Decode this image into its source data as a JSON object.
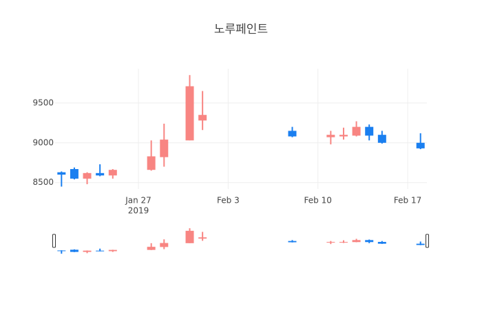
{
  "chart_data": {
    "type": "candlestick",
    "title": "노루페인트",
    "x": [
      "2019-01-21",
      "2019-01-22",
      "2019-01-23",
      "2019-01-24",
      "2019-01-25",
      "2019-01-28",
      "2019-01-29",
      "2019-01-31",
      "2019-02-01",
      "2019-02-08",
      "2019-02-11",
      "2019-02-12",
      "2019-02-13",
      "2019-02-14",
      "2019-02-15",
      "2019-02-18"
    ],
    "open": [
      8630,
      8670,
      8550,
      8620,
      8590,
      8660,
      8820,
      9030,
      9280,
      9150,
      9070,
      9080,
      9090,
      9200,
      9100,
      9000
    ],
    "high": [
      8640,
      8690,
      8630,
      8730,
      8670,
      9030,
      9240,
      9850,
      9650,
      9200,
      9150,
      9190,
      9270,
      9230,
      9150,
      9120
    ],
    "low": [
      8450,
      8540,
      8480,
      8580,
      8550,
      8650,
      8700,
      9030,
      9160,
      9070,
      8980,
      9040,
      9080,
      9030,
      8990,
      8920
    ],
    "close": [
      8600,
      8550,
      8620,
      8590,
      8660,
      8830,
      9040,
      9710,
      9350,
      9080,
      9100,
      9100,
      9200,
      9090,
      9000,
      8930
    ],
    "increasing_color": "#f88582",
    "decreasing_color": "#1a7ff0",
    "xlim": [
      "2019-01-20 12:00",
      "2019-02-18 12:00"
    ],
    "xticks": [
      {
        "value": "2019-01-27",
        "label": "Jan 27"
      },
      {
        "value": "2019-02-03",
        "label": "Feb 3"
      },
      {
        "value": "2019-02-10",
        "label": "Feb 10"
      },
      {
        "value": "2019-02-17",
        "label": "Feb 17"
      }
    ],
    "x_year_label": "2019",
    "ylim": [
      8420,
      9930
    ],
    "yticks": [
      8500,
      9000,
      9500
    ],
    "grid": true,
    "rangeslider": true
  }
}
